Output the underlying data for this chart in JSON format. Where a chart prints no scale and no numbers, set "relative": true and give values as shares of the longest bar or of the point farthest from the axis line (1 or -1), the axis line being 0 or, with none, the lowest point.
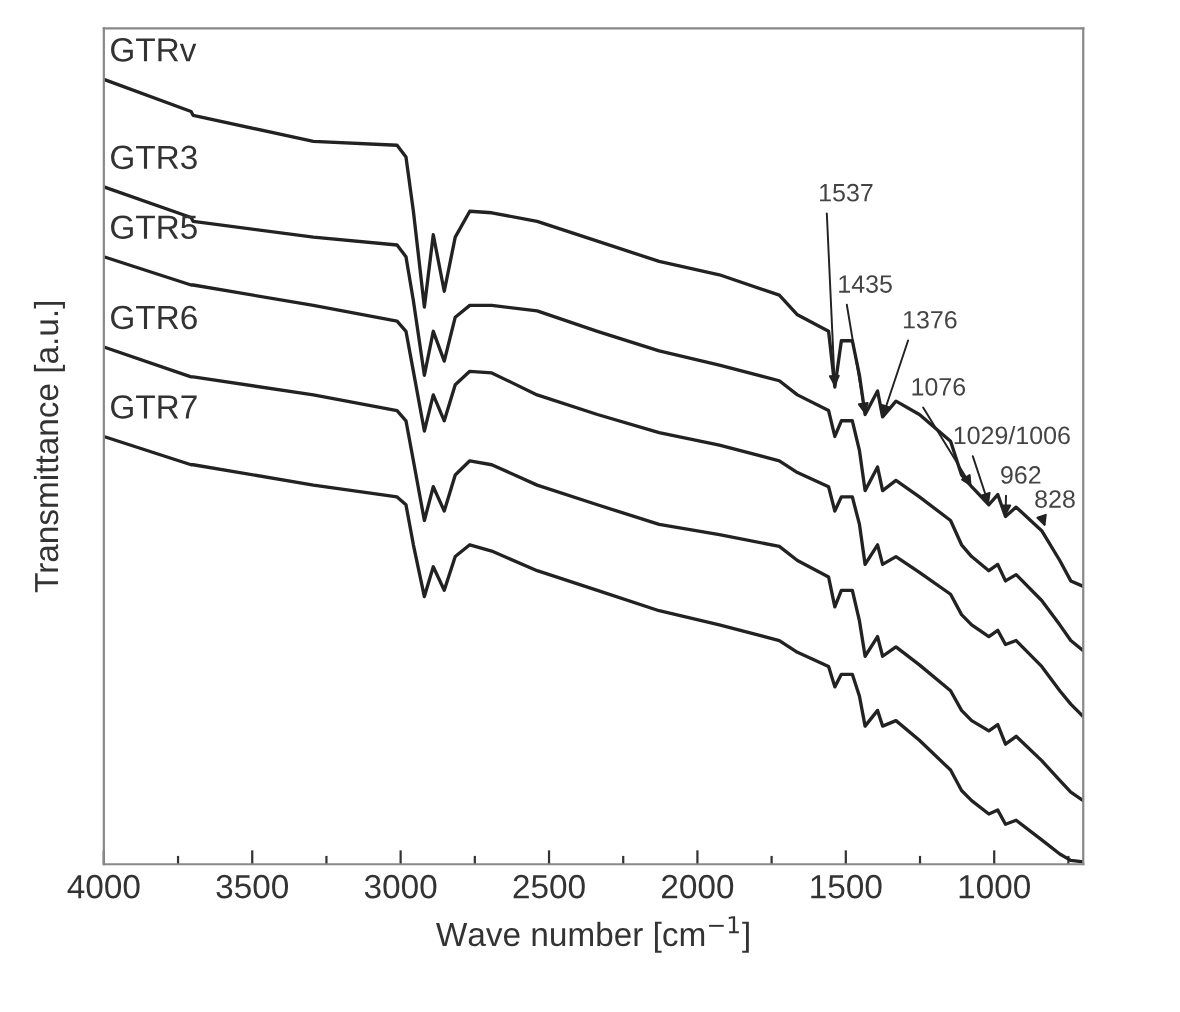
{
  "chart_data": {
    "type": "line",
    "relative": true,
    "xlabel": "Wave number [cm$^{−1}$]",
    "ylabel": "Transmittance [a.u.]",
    "xlim": [
      4000,
      700
    ],
    "xticks": [
      4000,
      {
        "value": 3750,
        "label": null
      },
      3500,
      {
        "value": 3250,
        "label": null
      },
      3000,
      {
        "value": 2750,
        "label": null
      },
      2500,
      {
        "value": 2250,
        "label": null
      },
      2000,
      {
        "value": 1750,
        "label": null
      },
      1500,
      {
        "value": 1250,
        "label": null
      },
      1000,
      {
        "value": 750,
        "label": null
      }
    ],
    "x": [
      4000,
      3706,
      3699,
      3294,
      3012,
      2982,
      2957,
      2920,
      2890,
      2853,
      2816,
      2767,
      2693,
      2540,
      2337,
      2129,
      1926,
      1724,
      1663,
      1558,
      1537,
      1515,
      1478,
      1454,
      1435,
      1393,
      1376,
      1331,
      1252,
      1147,
      1110,
      1076,
      1018,
      988,
      962,
      926,
      840,
      779,
      742,
      700
    ],
    "grid": false,
    "marker": "none",
    "line_style": "solid",
    "series": [
      {
        "name": "GTRv",
        "color": "#222222",
        "values": [
          1.0,
          0.959,
          0.954,
          0.921,
          0.916,
          0.901,
          0.832,
          0.71,
          0.802,
          0.73,
          0.799,
          0.832,
          0.83,
          0.819,
          0.794,
          0.768,
          0.751,
          0.725,
          0.7,
          0.679,
          0.608,
          0.667,
          0.667,
          0.623,
          0.573,
          0.603,
          0.57,
          0.59,
          0.573,
          0.539,
          0.496,
          0.481,
          0.458,
          0.471,
          0.443,
          0.455,
          0.425,
          0.387,
          0.361,
          0.354
        ]
      },
      {
        "name": "GTR3",
        "color": "#222222",
        "values": [
          0.863,
          0.824,
          0.819,
          0.799,
          0.789,
          0.774,
          0.718,
          0.623,
          0.679,
          0.641,
          0.697,
          0.712,
          0.712,
          0.705,
          0.679,
          0.654,
          0.636,
          0.616,
          0.598,
          0.578,
          0.545,
          0.565,
          0.565,
          0.527,
          0.476,
          0.506,
          0.476,
          0.489,
          0.468,
          0.438,
          0.407,
          0.392,
          0.374,
          0.382,
          0.361,
          0.369,
          0.336,
          0.305,
          0.285,
          0.272
        ]
      },
      {
        "name": "GTR5",
        "color": "#222222",
        "values": [
          0.774,
          0.738,
          0.738,
          0.712,
          0.692,
          0.679,
          0.628,
          0.552,
          0.598,
          0.565,
          0.611,
          0.628,
          0.626,
          0.598,
          0.573,
          0.55,
          0.534,
          0.514,
          0.499,
          0.481,
          0.45,
          0.468,
          0.468,
          0.433,
          0.382,
          0.407,
          0.382,
          0.392,
          0.372,
          0.344,
          0.318,
          0.305,
          0.29,
          0.298,
          0.28,
          0.285,
          0.252,
          0.221,
          0.204,
          0.188
        ]
      },
      {
        "name": "GTR6",
        "color": "#222222",
        "values": [
          0.659,
          0.621,
          0.621,
          0.598,
          0.578,
          0.565,
          0.514,
          0.438,
          0.481,
          0.45,
          0.496,
          0.514,
          0.509,
          0.483,
          0.458,
          0.433,
          0.42,
          0.405,
          0.387,
          0.366,
          0.328,
          0.349,
          0.349,
          0.31,
          0.265,
          0.29,
          0.265,
          0.277,
          0.254,
          0.221,
          0.196,
          0.183,
          0.17,
          0.178,
          0.153,
          0.163,
          0.132,
          0.107,
          0.092,
          0.081
        ]
      },
      {
        "name": "GTR7",
        "color": "#222222",
        "values": [
          0.545,
          0.509,
          0.509,
          0.483,
          0.468,
          0.458,
          0.407,
          0.341,
          0.379,
          0.349,
          0.392,
          0.407,
          0.399,
          0.374,
          0.349,
          0.323,
          0.305,
          0.285,
          0.27,
          0.252,
          0.226,
          0.242,
          0.242,
          0.214,
          0.176,
          0.196,
          0.176,
          0.183,
          0.158,
          0.12,
          0.094,
          0.081,
          0.064,
          0.069,
          0.051,
          0.056,
          0.031,
          0.013,
          0.005,
          0.003
        ]
      }
    ],
    "annotations": [
      {
        "text": "1537",
        "x": 1537,
        "y": 0.608
      },
      {
        "text": "1435",
        "x": 1435,
        "y": 0.573
      },
      {
        "text": "1376",
        "x": 1376,
        "y": 0.57
      },
      {
        "text": "1076",
        "x": 1076,
        "y": 0.481
      },
      {
        "text": "1029/1006",
        "x": 1018,
        "y": 0.458
      },
      {
        "text": "962",
        "x": 962,
        "y": 0.443
      },
      {
        "text": "828",
        "x": 828,
        "y": 0.43
      }
    ]
  }
}
